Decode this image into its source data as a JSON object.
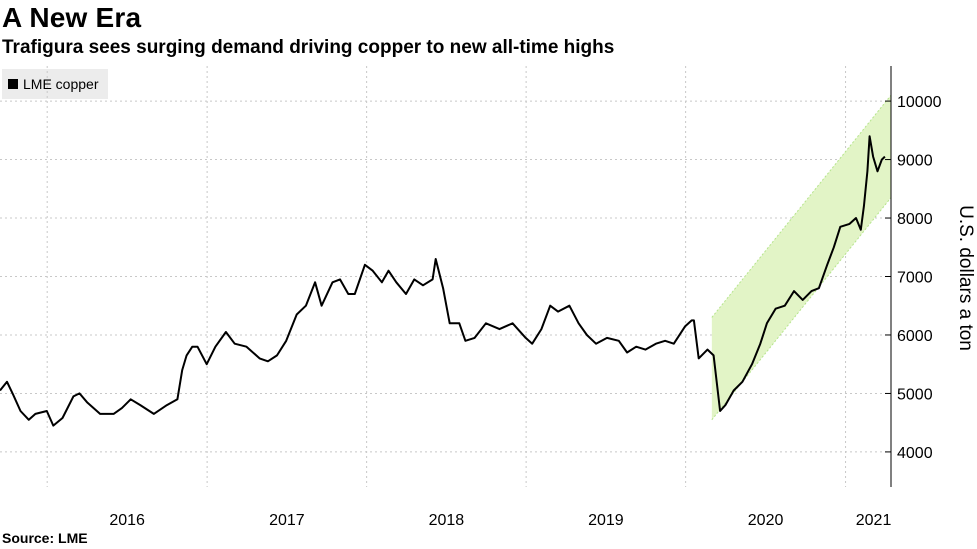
{
  "chart_data": {
    "type": "line",
    "title": "A New Era",
    "subtitle": "Trafigura sees surging demand driving copper to new all-time highs",
    "ylabel": "U.S. dollars a ton",
    "source": "Source: LME",
    "legend": {
      "position": "top-left",
      "entries": [
        "LME copper"
      ]
    },
    "grid": true,
    "ylim": [
      3400,
      10600
    ],
    "xlim": [
      "2015-09-15",
      "2021-04-15"
    ],
    "yticks": [
      4000,
      5000,
      6000,
      7000,
      8000,
      9000,
      10000
    ],
    "xticks": [
      {
        "label": "2016",
        "date": "2016-01-01"
      },
      {
        "label": "2017",
        "date": "2017-01-01"
      },
      {
        "label": "2018",
        "date": "2018-01-01"
      },
      {
        "label": "2019",
        "date": "2019-01-01"
      },
      {
        "label": "2020",
        "date": "2020-01-01"
      },
      {
        "label": "2021",
        "date": "2021-01-01"
      }
    ],
    "series": [
      {
        "name": "LME copper",
        "color": "#000000",
        "points": [
          [
            "2015-09-15",
            5050
          ],
          [
            "2015-10-01",
            5200
          ],
          [
            "2015-10-15",
            4980
          ],
          [
            "2015-11-01",
            4700
          ],
          [
            "2015-11-20",
            4550
          ],
          [
            "2015-12-05",
            4650
          ],
          [
            "2015-12-31",
            4700
          ],
          [
            "2016-01-15",
            4450
          ],
          [
            "2016-02-05",
            4580
          ],
          [
            "2016-03-01",
            4950
          ],
          [
            "2016-03-15",
            5000
          ],
          [
            "2016-04-01",
            4850
          ],
          [
            "2016-05-01",
            4650
          ],
          [
            "2016-06-01",
            4650
          ],
          [
            "2016-06-20",
            4750
          ],
          [
            "2016-07-10",
            4900
          ],
          [
            "2016-08-01",
            4800
          ],
          [
            "2016-09-01",
            4650
          ],
          [
            "2016-10-01",
            4800
          ],
          [
            "2016-10-25",
            4900
          ],
          [
            "2016-11-05",
            5400
          ],
          [
            "2016-11-15",
            5650
          ],
          [
            "2016-11-28",
            5800
          ],
          [
            "2016-12-10",
            5800
          ],
          [
            "2016-12-31",
            5500
          ],
          [
            "2017-01-20",
            5800
          ],
          [
            "2017-02-13",
            6050
          ],
          [
            "2017-03-05",
            5850
          ],
          [
            "2017-04-01",
            5800
          ],
          [
            "2017-05-01",
            5600
          ],
          [
            "2017-05-20",
            5550
          ],
          [
            "2017-06-10",
            5650
          ],
          [
            "2017-07-01",
            5900
          ],
          [
            "2017-07-25",
            6350
          ],
          [
            "2017-08-15",
            6500
          ],
          [
            "2017-09-05",
            6900
          ],
          [
            "2017-09-20",
            6500
          ],
          [
            "2017-10-15",
            6900
          ],
          [
            "2017-11-01",
            6950
          ],
          [
            "2017-11-20",
            6700
          ],
          [
            "2017-12-05",
            6700
          ],
          [
            "2017-12-28",
            7200
          ],
          [
            "2018-01-15",
            7100
          ],
          [
            "2018-02-05",
            6900
          ],
          [
            "2018-02-20",
            7100
          ],
          [
            "2018-03-10",
            6900
          ],
          [
            "2018-04-01",
            6700
          ],
          [
            "2018-04-20",
            6950
          ],
          [
            "2018-05-10",
            6850
          ],
          [
            "2018-06-01",
            6950
          ],
          [
            "2018-06-08",
            7300
          ],
          [
            "2018-06-25",
            6800
          ],
          [
            "2018-07-10",
            6200
          ],
          [
            "2018-08-01",
            6200
          ],
          [
            "2018-08-15",
            5900
          ],
          [
            "2018-09-05",
            5950
          ],
          [
            "2018-10-01",
            6200
          ],
          [
            "2018-11-01",
            6100
          ],
          [
            "2018-12-01",
            6200
          ],
          [
            "2018-12-31",
            5950
          ],
          [
            "2019-01-15",
            5850
          ],
          [
            "2019-02-05",
            6100
          ],
          [
            "2019-02-25",
            6500
          ],
          [
            "2019-03-15",
            6400
          ],
          [
            "2019-04-10",
            6500
          ],
          [
            "2019-05-01",
            6200
          ],
          [
            "2019-05-20",
            6000
          ],
          [
            "2019-06-10",
            5850
          ],
          [
            "2019-07-05",
            5950
          ],
          [
            "2019-08-01",
            5900
          ],
          [
            "2019-08-20",
            5700
          ],
          [
            "2019-09-10",
            5800
          ],
          [
            "2019-10-01",
            5750
          ],
          [
            "2019-10-25",
            5850
          ],
          [
            "2019-11-15",
            5900
          ],
          [
            "2019-12-05",
            5850
          ],
          [
            "2019-12-31",
            6150
          ],
          [
            "2020-01-15",
            6250
          ],
          [
            "2020-01-20",
            6250
          ],
          [
            "2020-01-31",
            5600
          ],
          [
            "2020-02-20",
            5750
          ],
          [
            "2020-03-05",
            5650
          ],
          [
            "2020-03-20",
            4700
          ],
          [
            "2020-04-01",
            4800
          ],
          [
            "2020-04-20",
            5050
          ],
          [
            "2020-05-10",
            5200
          ],
          [
            "2020-06-01",
            5500
          ],
          [
            "2020-06-20",
            5850
          ],
          [
            "2020-07-05",
            6200
          ],
          [
            "2020-07-25",
            6450
          ],
          [
            "2020-08-15",
            6500
          ],
          [
            "2020-09-05",
            6750
          ],
          [
            "2020-09-25",
            6600
          ],
          [
            "2020-10-15",
            6750
          ],
          [
            "2020-11-01",
            6800
          ],
          [
            "2020-11-20",
            7200
          ],
          [
            "2020-12-05",
            7500
          ],
          [
            "2020-12-20",
            7850
          ],
          [
            "2021-01-10",
            7900
          ],
          [
            "2021-01-25",
            8000
          ],
          [
            "2021-02-05",
            7800
          ],
          [
            "2021-02-12",
            8200
          ],
          [
            "2021-02-20",
            8800
          ],
          [
            "2021-02-25",
            9400
          ],
          [
            "2021-03-05",
            9050
          ],
          [
            "2021-03-15",
            8800
          ],
          [
            "2021-03-25",
            9000
          ],
          [
            "2021-04-01",
            9050
          ]
        ]
      }
    ],
    "channel": {
      "color": "#e2f4c6",
      "edge_color": "#b5e48c",
      "upper": [
        [
          "2020-03-01",
          6300
        ],
        [
          "2021-04-15",
          10100
        ]
      ],
      "lower": [
        [
          "2020-03-01",
          4550
        ],
        [
          "2021-04-15",
          8350
        ]
      ]
    },
    "y_axis_side": "right"
  }
}
